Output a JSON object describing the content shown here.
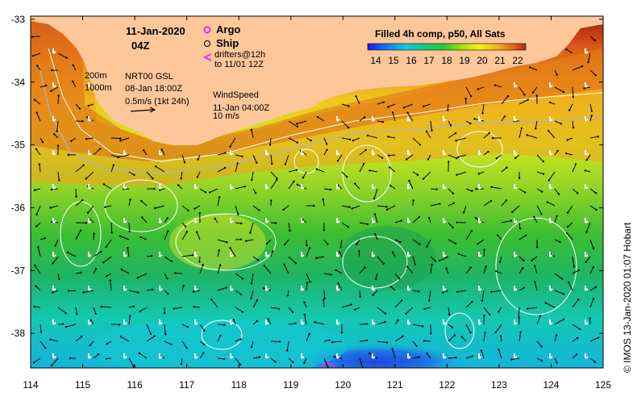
{
  "title": {
    "date": "11-Jan-2020",
    "time": "04Z"
  },
  "legend": {
    "argo": "Argo",
    "ship": "Ship",
    "drifters_line1": "drifters@12h",
    "drifters_line2": "to 11/01 12Z",
    "isobath_200": "200m",
    "isobath_1000": "1000m",
    "current_product": "NRT00 GSL",
    "current_date": "08-Jan 18:00Z",
    "current_scale": "0.5m/s (1kt 24h)",
    "wind_title": "WindSpeed",
    "wind_date": "11-Jan 04:00Z",
    "wind_scale": "10 m/s"
  },
  "colorbar": {
    "title": "Filled 4h comp, p50, All Sats",
    "ticks": [
      "14",
      "15",
      "16",
      "17",
      "18",
      "19",
      "20",
      "21",
      "22"
    ],
    "colors": [
      "#1a1adc",
      "#1478f0",
      "#14c8e6",
      "#14c88c",
      "#28c83c",
      "#96dc14",
      "#f0f01e",
      "#f0b41e",
      "#e6641e",
      "#b42814"
    ]
  },
  "axes": {
    "x_ticks": [
      "114",
      "115",
      "116",
      "117",
      "118",
      "119",
      "120",
      "121",
      "122",
      "123",
      "124",
      "125"
    ],
    "y_ticks": [
      "-33",
      "-34",
      "-35",
      "-36",
      "-37",
      "-38"
    ],
    "lon_range": [
      114,
      125
    ],
    "lat_range": [
      -38.55,
      -32.95
    ]
  },
  "credit": "© IMOS 13-Jan-2020 01:07 Hobart",
  "colors": {
    "land": "#fdc79a",
    "argo": "#e633e6",
    "drifter": "#e633e6"
  }
}
